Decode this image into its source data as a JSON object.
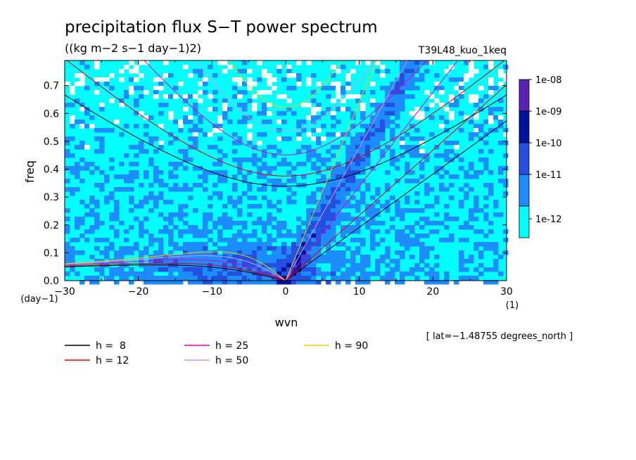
{
  "chart_data": {
    "type": "heatmap",
    "title": "precipitation flux S−T power spectrum",
    "subtitle": "((kg m−2 s−1 day−1)2)",
    "experiment": "T39L48_kuo_1keq",
    "xlabel": "wvn",
    "ylabel": "freq",
    "xunit": "(1)",
    "yunit": "(day−1)",
    "xlim": [
      -30,
      30
    ],
    "ylim": [
      0,
      0.79
    ],
    "xticks": [
      -30,
      -20,
      -10,
      0,
      10,
      20,
      30
    ],
    "yticks": [
      0.0,
      0.1,
      0.2,
      0.3,
      0.4,
      0.5,
      0.6,
      0.7
    ],
    "annotation": "[ lat=−1.48755 degrees_north ]",
    "colorbar": {
      "labels": [
        "1e-08",
        "1e-09",
        "1e-10",
        "1e-11",
        "1e-12"
      ],
      "colors": [
        "#5b21b6",
        "#00129e",
        "#2350e0",
        "#1c8cff",
        "#00ffff"
      ]
    },
    "dispersion_curves": [
      {
        "label": "h =  8",
        "h": 8,
        "color": "#000000"
      },
      {
        "label": "h = 12",
        "h": 12,
        "color": "#e00000"
      },
      {
        "label": "h = 25",
        "h": 25,
        "color": "#e000c0"
      },
      {
        "label": "h = 50",
        "h": 50,
        "color": "#d890e8"
      },
      {
        "label": "h = 90",
        "h": 90,
        "color": "#e0d000"
      }
    ]
  }
}
